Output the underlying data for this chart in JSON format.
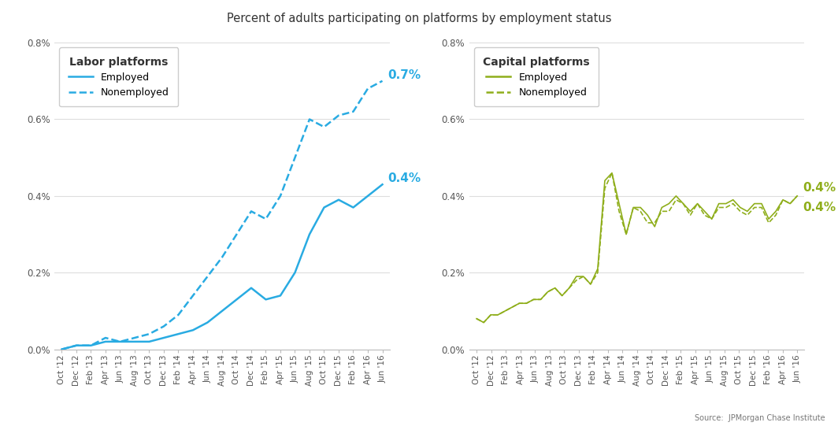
{
  "title": "Percent of adults participating on platforms by employment status",
  "source": "Source:  JPMorgan Chase Institute",
  "x_labels": [
    "Oct '12",
    "Dec '12",
    "Feb '13",
    "Apr '13",
    "Jun '13",
    "Aug '13",
    "Oct '13",
    "Dec '13",
    "Feb '14",
    "Apr '14",
    "Jun '14",
    "Aug '14",
    "Oct '14",
    "Dec '14",
    "Feb '15",
    "Apr '15",
    "Jun '15",
    "Aug '15",
    "Oct '15",
    "Dec '15",
    "Feb '16",
    "Apr '16",
    "Jun '16"
  ],
  "labor_employed": [
    0.0,
    0.0001,
    0.0001,
    0.0002,
    0.0002,
    0.0002,
    0.0002,
    0.0003,
    0.0004,
    0.0005,
    0.0007,
    0.001,
    0.0013,
    0.0016,
    0.0013,
    0.0014,
    0.002,
    0.003,
    0.0037,
    0.0039,
    0.0037,
    0.004,
    0.0043
  ],
  "labor_nonemployed": [
    0.0,
    0.0001,
    0.0001,
    0.0003,
    0.0002,
    0.0003,
    0.0004,
    0.0006,
    0.0009,
    0.0014,
    0.0019,
    0.0024,
    0.003,
    0.0036,
    0.0034,
    0.004,
    0.005,
    0.006,
    0.0058,
    0.0061,
    0.0062,
    0.0068,
    0.007
  ],
  "capital_employed": [
    0.0008,
    0.0007,
    0.0009,
    0.0009,
    0.001,
    0.0011,
    0.0012,
    0.0012,
    0.0013,
    0.0013,
    0.0015,
    0.0016,
    0.0014,
    0.0016,
    0.0019,
    0.0019,
    0.0017,
    0.0021,
    0.0044,
    0.0046,
    0.0038,
    0.003,
    0.0037,
    0.0037,
    0.0035,
    0.0032,
    0.0037,
    0.0038,
    0.004,
    0.0038,
    0.0036,
    0.0038,
    0.0036,
    0.0034,
    0.0038,
    0.0038,
    0.0039,
    0.0037,
    0.0036,
    0.0038,
    0.0038,
    0.0034,
    0.0036,
    0.0039,
    0.0038,
    0.004
  ],
  "capital_nonemployed": [
    0.0008,
    0.0007,
    0.0009,
    0.0009,
    0.001,
    0.0011,
    0.0012,
    0.0012,
    0.0013,
    0.0013,
    0.0015,
    0.0016,
    0.0014,
    0.0016,
    0.0018,
    0.0019,
    0.0017,
    0.002,
    0.0042,
    0.0046,
    0.0036,
    0.003,
    0.0037,
    0.0036,
    0.0033,
    0.0033,
    0.0036,
    0.0036,
    0.0039,
    0.0038,
    0.0035,
    0.0038,
    0.0035,
    0.0034,
    0.0037,
    0.0037,
    0.0038,
    0.0036,
    0.0035,
    0.0037,
    0.0037,
    0.0033,
    0.0035,
    0.0039,
    0.0038,
    0.004
  ],
  "labor_color": "#29abe2",
  "capital_color": "#8fae1b",
  "legend_labor_title": "Labor platforms",
  "legend_capital_title": "Capital platforms",
  "legend_employed": "Employed",
  "legend_nonemployed": "Nonemployed",
  "label_labor_employed": "0.4%",
  "label_labor_nonemployed": "0.7%",
  "label_capital_employed": "0.4%",
  "label_capital_nonemployed": "0.4%"
}
